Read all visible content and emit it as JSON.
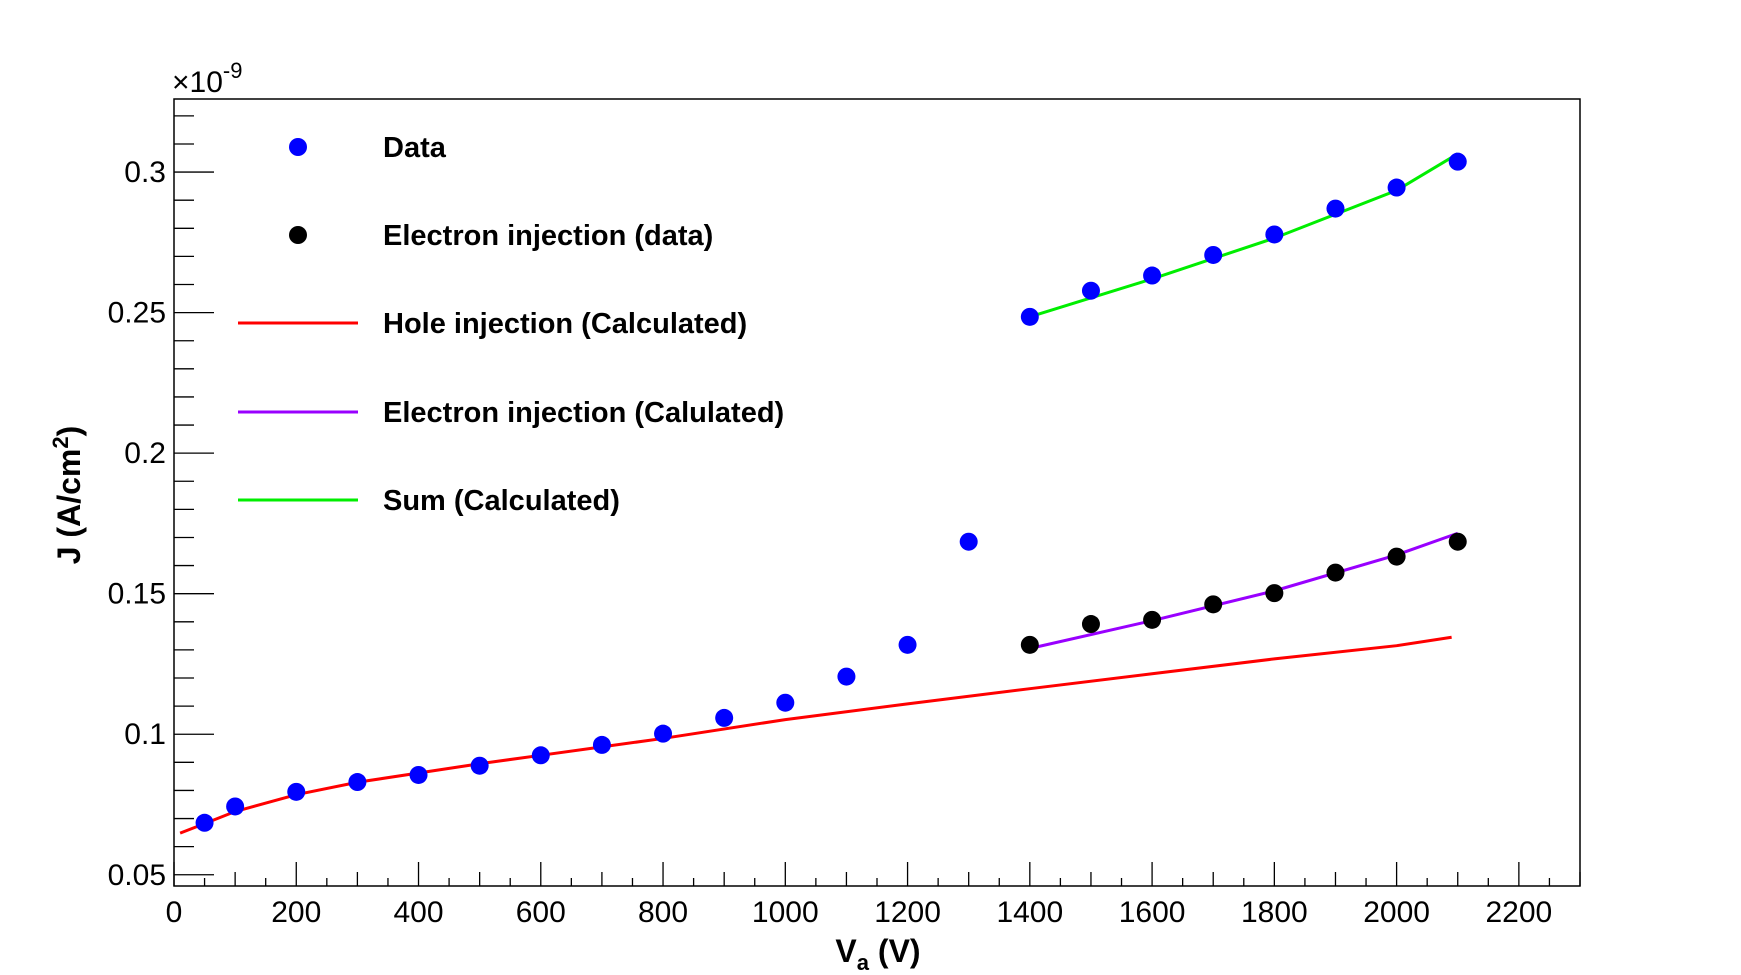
{
  "chart_data": {
    "type": "scatter",
    "xlabel_main": "V",
    "xlabel_sub": "a",
    "xlabel_unit": " (V)",
    "ylabel_main": "J (A/cm",
    "ylabel_sup": "2",
    "ylabel_end": ")",
    "y_multiplier_prefix": "×10",
    "y_multiplier_exp": "-9",
    "xlim": [
      0,
      2300
    ],
    "ylim": [
      0.046,
      0.326
    ],
    "x_ticks": [
      0,
      200,
      400,
      600,
      800,
      1000,
      1200,
      1400,
      1600,
      1800,
      2000,
      2200
    ],
    "x_tick_labels": [
      "0",
      "200",
      "400",
      "600",
      "800",
      "1000",
      "1200",
      "1400",
      "1600",
      "1800",
      "2000",
      "2200"
    ],
    "y_ticks": [
      0.05,
      0.1,
      0.15,
      0.2,
      0.25,
      0.3
    ],
    "y_tick_labels": [
      "0.05",
      "0.1",
      "0.15",
      "0.2",
      "0.25",
      "0.3"
    ],
    "legend": [
      {
        "label": "Data",
        "kind": "marker",
        "color": "#0000ff"
      },
      {
        "label": "Electron injection (data)",
        "kind": "marker",
        "color": "#000000"
      },
      {
        "label": "Hole injection (Calculated)",
        "kind": "line",
        "color": "#ff0000"
      },
      {
        "label": "Electron injection (Calulated)",
        "kind": "line",
        "color": "#9900ff"
      },
      {
        "label": "Sum (Calculated)",
        "kind": "line",
        "color": "#00ee00"
      }
    ],
    "series": [
      {
        "name": "Data",
        "kind": "marker",
        "color": "#0000ff",
        "x": [
          50,
          100,
          200,
          300,
          400,
          500,
          600,
          700,
          800,
          900,
          1000,
          1100,
          1200,
          1300,
          1400,
          1500,
          1600,
          1700,
          1800,
          1900,
          2000,
          2100
        ],
        "y": [
          0.0685,
          0.0743,
          0.0795,
          0.083,
          0.0855,
          0.0888,
          0.0925,
          0.0962,
          0.1002,
          0.1058,
          0.1112,
          0.1205,
          0.1318,
          0.1685,
          0.2485,
          0.2578,
          0.2632,
          0.2705,
          0.2778,
          0.287,
          0.2945,
          0.3037
        ]
      },
      {
        "name": "Electron injection (data)",
        "kind": "marker",
        "color": "#000000",
        "x": [
          1400,
          1500,
          1600,
          1700,
          1800,
          1900,
          2000,
          2100
        ],
        "y": [
          0.1318,
          0.1392,
          0.1407,
          0.1462,
          0.1502,
          0.1575,
          0.1632,
          0.1685
        ]
      },
      {
        "name": "Hole injection (Calculated)",
        "kind": "line",
        "color": "#ff0000",
        "x": [
          10,
          50,
          100,
          200,
          300,
          400,
          500,
          600,
          700,
          800,
          1000,
          1200,
          1400,
          1600,
          1800,
          2000,
          2090
        ],
        "y": [
          0.0648,
          0.0682,
          0.0725,
          0.0785,
          0.0829,
          0.0862,
          0.0895,
          0.0925,
          0.0955,
          0.0985,
          0.1052,
          0.1108,
          0.1162,
          0.1215,
          0.1268,
          0.1315,
          0.1345
        ]
      },
      {
        "name": "Electron injection (Calulated)",
        "kind": "line",
        "color": "#9900ff",
        "x": [
          1400,
          1600,
          1800,
          2000,
          2100
        ],
        "y": [
          0.1305,
          0.1404,
          0.151,
          0.1638,
          0.1715
        ]
      },
      {
        "name": "Sum (Calculated)",
        "kind": "line",
        "color": "#00ee00",
        "x": [
          1400,
          1600,
          1800,
          2000,
          2100
        ],
        "y": [
          0.2485,
          0.262,
          0.2765,
          0.2935,
          0.3065
        ]
      }
    ]
  }
}
